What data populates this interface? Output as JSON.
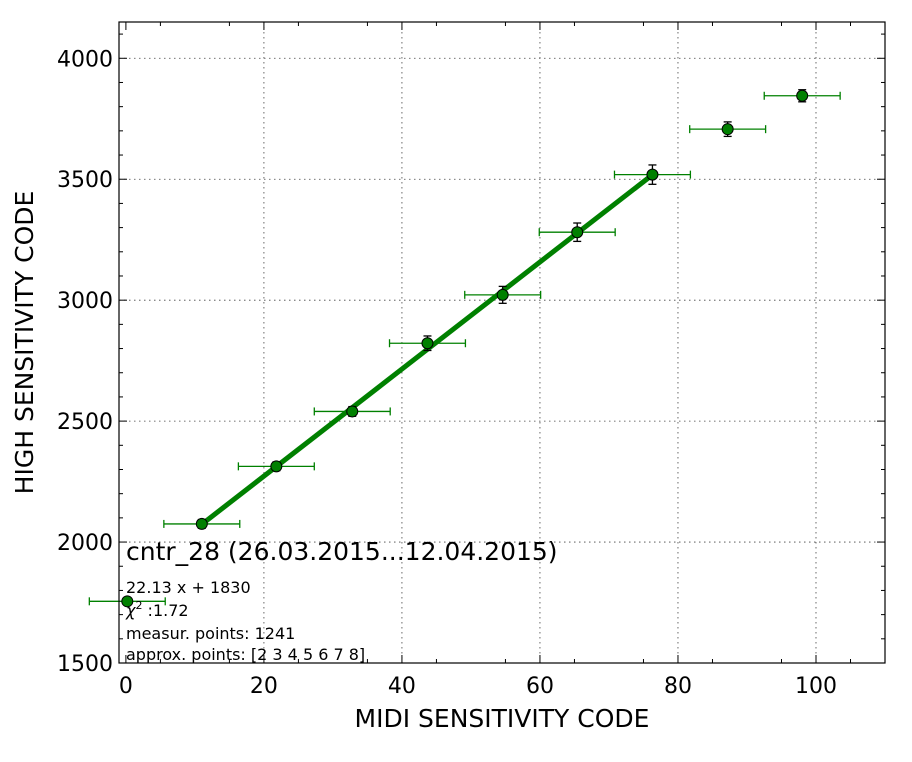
{
  "chart_data": {
    "type": "scatter",
    "xlabel": "MIDI SENSITIVITY CODE",
    "ylabel": "HIGH SENSITIVITY CODE",
    "xlim": [
      -1,
      110
    ],
    "ylim": [
      1500,
      4150
    ],
    "xticks": [
      0,
      20,
      40,
      60,
      80,
      100
    ],
    "yticks": [
      1500,
      2000,
      2500,
      3000,
      3500,
      4000
    ],
    "grid": true,
    "points": [
      {
        "x": 0.2,
        "y": 1755,
        "xerr": 5.5,
        "yerr": 15
      },
      {
        "x": 11.0,
        "y": 2075,
        "xerr": 5.5,
        "yerr": 18
      },
      {
        "x": 21.8,
        "y": 2313,
        "xerr": 5.5,
        "yerr": 18
      },
      {
        "x": 32.8,
        "y": 2540,
        "xerr": 5.5,
        "yerr": 20
      },
      {
        "x": 43.7,
        "y": 2822,
        "xerr": 5.5,
        "yerr": 30
      },
      {
        "x": 54.6,
        "y": 3022,
        "xerr": 5.5,
        "yerr": 35
      },
      {
        "x": 65.4,
        "y": 3281,
        "xerr": 5.5,
        "yerr": 38
      },
      {
        "x": 76.3,
        "y": 3519,
        "xerr": 5.5,
        "yerr": 40
      },
      {
        "x": 87.2,
        "y": 3707,
        "xerr": 5.5,
        "yerr": 30
      },
      {
        "x": 98.0,
        "y": 3845,
        "xerr": 5.5,
        "yerr": 25
      }
    ],
    "fit": {
      "slope": 22.13,
      "intercept": 1830,
      "x_range": [
        11.0,
        76.3
      ]
    },
    "colors": {
      "fit_line": "#008000",
      "marker": "#008000",
      "errorbar": "#008000",
      "grid": "#444444"
    },
    "title": "cntr_28 (26.03.2015...12.04.2015)",
    "annotations": {
      "equation": "22.13 x + 1830",
      "chi2_symbol": "χ",
      "chi2_sup": "2",
      "chi2_value": " :1.72",
      "measur_points": "measur. points: 1241",
      "approx_points": "approx. points: [2 3 4 5 6 7 8]"
    }
  }
}
